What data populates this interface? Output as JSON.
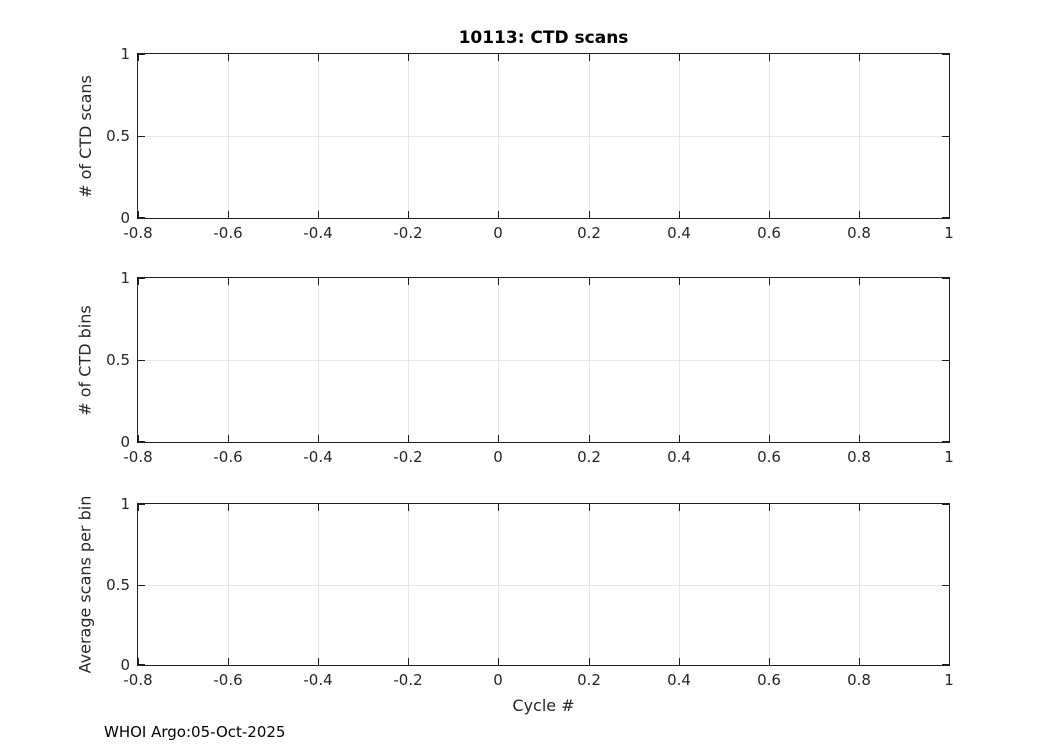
{
  "figure": {
    "footer": "WHOI Argo:05-Oct-2025",
    "xlabel": "Cycle #",
    "colors": {
      "axis": "#1f1f1f",
      "grid": "#e6e6e6",
      "text": "#262626",
      "title": "#000000",
      "background": "#ffffff"
    }
  },
  "chart_data": [
    {
      "type": "line",
      "title": "10113: CTD scans",
      "ylabel": "# of CTD scans",
      "xlabel": "",
      "xlim": [
        -0.8,
        1
      ],
      "ylim": [
        0,
        1
      ],
      "xticks": [
        -0.8,
        -0.6,
        -0.4,
        -0.2,
        0,
        0.2,
        0.4,
        0.6,
        0.8,
        1
      ],
      "xtick_labels": [
        "-0.8",
        "-0.6",
        "-0.4",
        "-0.2",
        "0",
        "0.2",
        "0.4",
        "0.6",
        "0.8",
        "1"
      ],
      "yticks": [
        0,
        0.5,
        1
      ],
      "ytick_labels": [
        "0",
        "0.5",
        "1"
      ],
      "grid": true,
      "legend": null,
      "series": []
    },
    {
      "type": "line",
      "title": "",
      "ylabel": "# of CTD bins",
      "xlabel": "",
      "xlim": [
        -0.8,
        1
      ],
      "ylim": [
        0,
        1
      ],
      "xticks": [
        -0.8,
        -0.6,
        -0.4,
        -0.2,
        0,
        0.2,
        0.4,
        0.6,
        0.8,
        1
      ],
      "xtick_labels": [
        "-0.8",
        "-0.6",
        "-0.4",
        "-0.2",
        "0",
        "0.2",
        "0.4",
        "0.6",
        "0.8",
        "1"
      ],
      "yticks": [
        0,
        0.5,
        1
      ],
      "ytick_labels": [
        "0",
        "0.5",
        "1"
      ],
      "grid": true,
      "legend": null,
      "series": []
    },
    {
      "type": "line",
      "title": "",
      "ylabel": "Average scans per bin",
      "xlabel": "Cycle #",
      "xlim": [
        -0.8,
        1
      ],
      "ylim": [
        0,
        1
      ],
      "xticks": [
        -0.8,
        -0.6,
        -0.4,
        -0.2,
        0,
        0.2,
        0.4,
        0.6,
        0.8,
        1
      ],
      "xtick_labels": [
        "-0.8",
        "-0.6",
        "-0.4",
        "-0.2",
        "0",
        "0.2",
        "0.4",
        "0.6",
        "0.8",
        "1"
      ],
      "yticks": [
        0,
        0.5,
        1
      ],
      "ytick_labels": [
        "0",
        "0.5",
        "1"
      ],
      "grid": true,
      "legend": null,
      "series": []
    }
  ]
}
